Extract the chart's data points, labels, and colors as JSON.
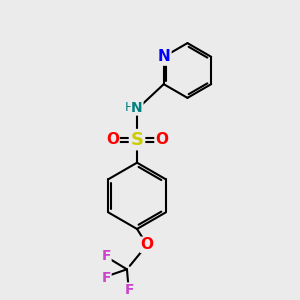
{
  "bg_color": "#ebebeb",
  "bond_color": "#000000",
  "n_color": "#0000ff",
  "o_color": "#ff0000",
  "s_color": "#cccc00",
  "f_color": "#cc44cc",
  "nh_color": "#008080",
  "h_color": "#008080",
  "bond_width": 1.5,
  "figsize": [
    3.0,
    3.0
  ],
  "dpi": 100,
  "xlim": [
    0,
    10
  ],
  "ylim": [
    0,
    10
  ]
}
